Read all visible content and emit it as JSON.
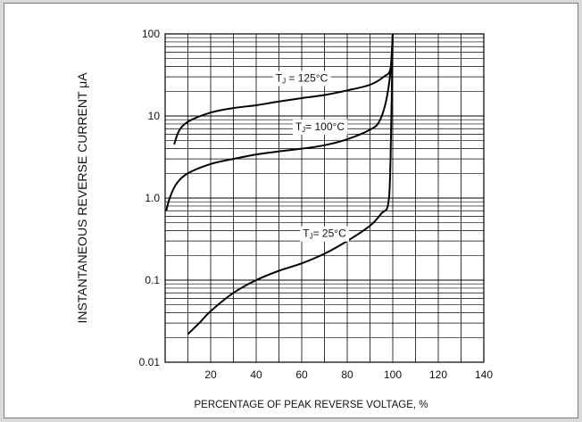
{
  "chart_data": {
    "type": "line",
    "title": "",
    "xlabel": "PERCENTAGE OF PEAK REVERSE VOLTAGE, %",
    "ylabel": "INSTANTANEOUS REVERSE CURRENT μA",
    "xlim": [
      0,
      140
    ],
    "ylim": [
      0.01,
      100
    ],
    "yscale": "log",
    "grid": true,
    "x_ticks": [
      20,
      40,
      60,
      80,
      100,
      120,
      140
    ],
    "y_ticks": [
      0.01,
      0.1,
      1.0,
      10,
      100
    ],
    "y_tick_labels": [
      "0.01",
      "0.1",
      "1.0",
      "10",
      "100"
    ],
    "series": [
      {
        "name": "TJ = 125°C",
        "label_main": "T",
        "label_sub": "J",
        "label_rest": " = 125°C",
        "x": [
          4,
          6,
          10,
          20,
          30,
          40,
          50,
          60,
          70,
          80,
          90,
          96,
          99,
          100
        ],
        "y": [
          4.5,
          6.5,
          8.5,
          11,
          12.5,
          13.5,
          15,
          16.5,
          18,
          20.5,
          24,
          30,
          38,
          100
        ]
      },
      {
        "name": "TJ = 100°C",
        "label_main": "T",
        "label_sub": "J",
        "label_rest": "= 100°C",
        "x": [
          0.5,
          2,
          5,
          10,
          20,
          30,
          40,
          50,
          60,
          70,
          80,
          90,
          94,
          97,
          99,
          100
        ],
        "y": [
          0.7,
          1.0,
          1.5,
          2.0,
          2.6,
          3.0,
          3.4,
          3.7,
          4.0,
          4.4,
          5.2,
          6.8,
          8.5,
          15,
          35,
          100
        ]
      },
      {
        "name": "TJ = 25°C",
        "label_main": "T",
        "label_sub": "J",
        "label_rest": "= 25°C",
        "x": [
          10,
          15,
          20,
          30,
          40,
          50,
          60,
          70,
          80,
          90,
          95,
          98,
          99,
          100
        ],
        "y": [
          0.022,
          0.03,
          0.042,
          0.07,
          0.1,
          0.13,
          0.16,
          0.21,
          0.3,
          0.46,
          0.65,
          0.85,
          3,
          100
        ]
      }
    ]
  }
}
